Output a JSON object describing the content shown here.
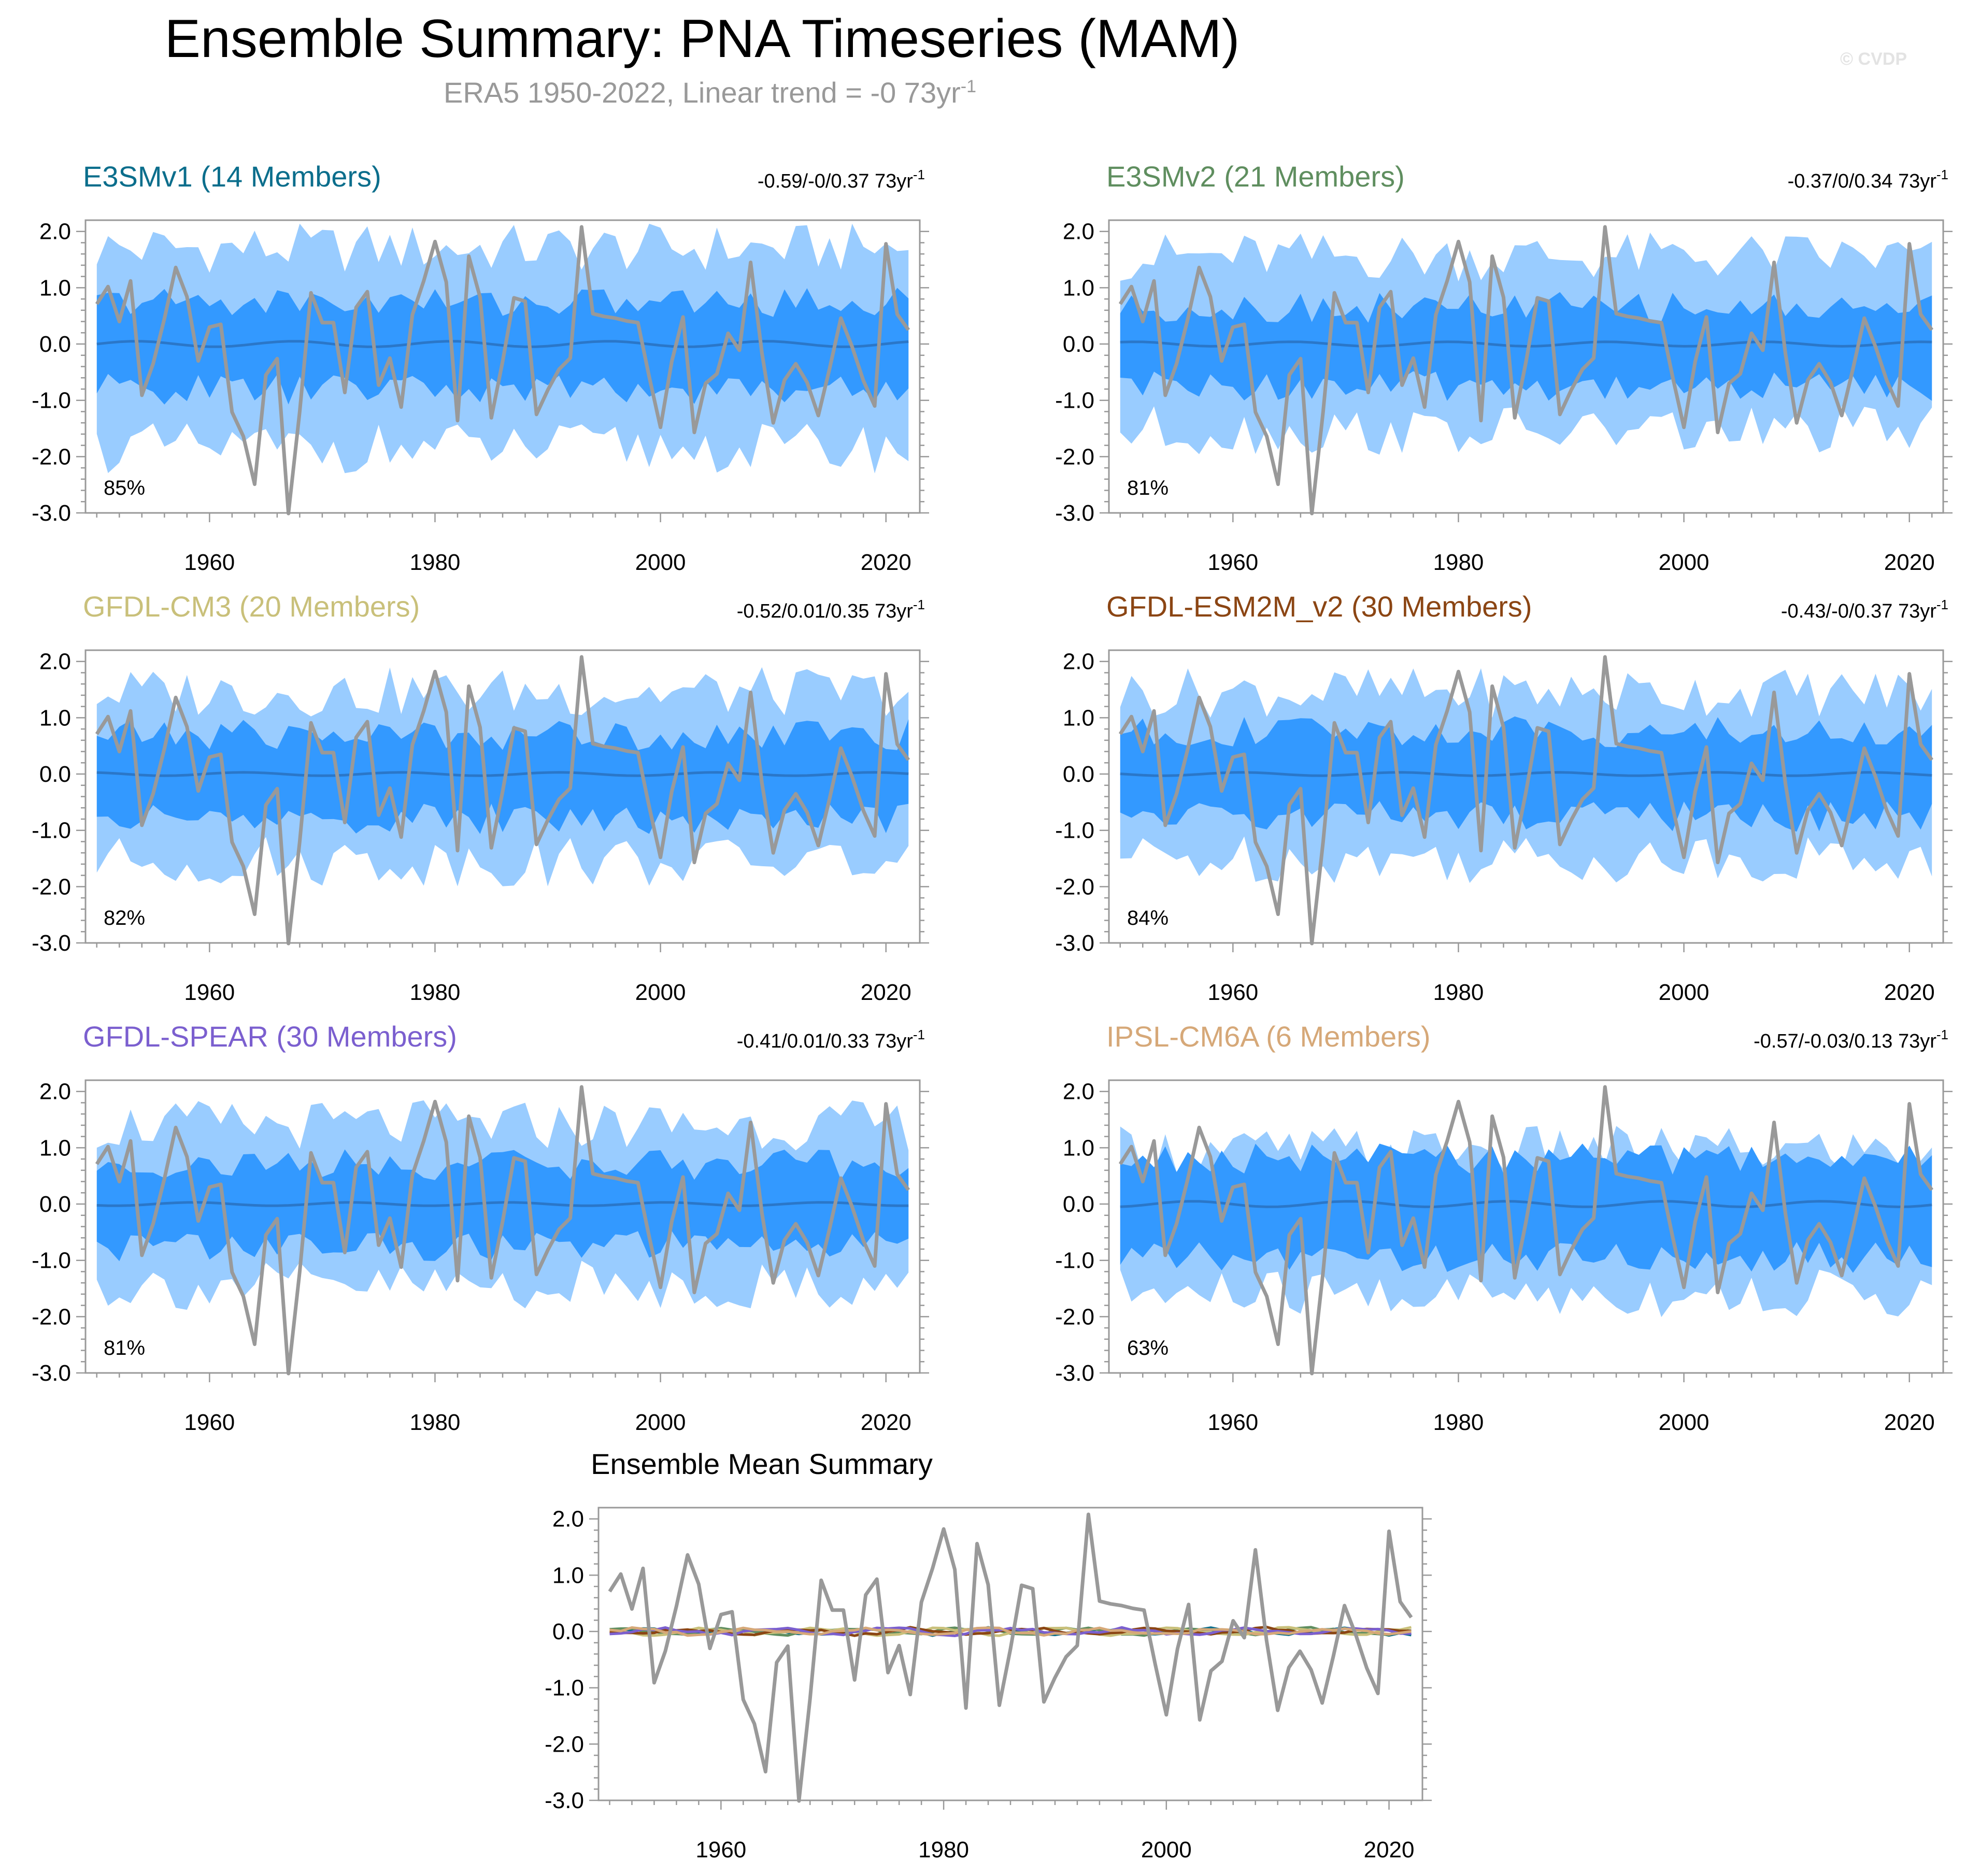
{
  "title": "Ensemble Summary: PNA Timeseries (MAM)",
  "subtitle_main": "ERA5 1950-2022, Linear trend = -0 73yr",
  "subtitle_sup": "-1",
  "watermark": "© CVDP",
  "colors": {
    "outer_band": "#99ccff",
    "inner_band": "#3399ff",
    "ens_mean": "#2a77c9",
    "observed": "#999999",
    "axis": "#999999"
  },
  "x_ticks": [
    "1960",
    "1980",
    "2000",
    "2020"
  ],
  "y_ticks": [
    "2.0",
    "1.0",
    "0.0",
    "-1.0",
    "-2.0",
    "-3.0"
  ],
  "chart_data": {
    "type": "line",
    "years": [
      1950,
      2022
    ],
    "xlim": [
      1949,
      2023
    ],
    "ylim": [
      -3.0,
      2.2
    ],
    "observed_name": "ERA5",
    "observed": [
      0.71,
      1.02,
      0.4,
      1.12,
      -0.91,
      -0.35,
      0.45,
      1.36,
      0.84,
      -0.3,
      0.3,
      0.35,
      -1.21,
      -1.64,
      -2.49,
      -0.55,
      -0.26,
      -3.01,
      -1.2,
      0.91,
      0.38,
      0.38,
      -0.86,
      0.65,
      0.93,
      -0.73,
      -0.25,
      -1.12,
      0.52,
      1.12,
      1.82,
      1.1,
      -1.36,
      1.56,
      0.83,
      -1.31,
      -0.31,
      0.82,
      0.76,
      -1.25,
      -0.82,
      -0.45,
      -0.25,
      2.08,
      0.54,
      0.49,
      0.46,
      0.41,
      0.38,
      -0.58,
      -1.48,
      -0.31,
      0.48,
      -1.57,
      -0.7,
      -0.53,
      0.19,
      -0.11,
      1.45,
      -0.16,
      -1.4,
      -0.64,
      -0.35,
      -0.68,
      -1.27,
      -0.44,
      0.46,
      -0.05,
      -0.65,
      -1.1,
      1.78,
      0.53,
      0.25
    ],
    "panels": [
      {
        "model": "E3SMv1",
        "members": "(14 Members)",
        "stats": "-0.59/-0/0.37 73yr",
        "stats_sup": "-1",
        "pct": "85%",
        "title_color": "#0b6e8c",
        "outer": [
          1.7,
          -1.85
        ],
        "inner": [
          0.75,
          -0.8
        ],
        "mean_amp": 0.05
      },
      {
        "model": "E3SMv2",
        "members": "(21 Members)",
        "stats": "-0.37/0/0.34 73yr",
        "stats_sup": "-1",
        "pct": "81%",
        "title_color": "#5f8e5f",
        "outer": [
          1.55,
          -1.55
        ],
        "inner": [
          0.65,
          -0.75
        ],
        "mean_amp": 0.04
      },
      {
        "model": "GFDL-CM3",
        "members": "(20 Members)",
        "stats": "-0.52/0.01/0.35 73yr",
        "stats_sup": "-1",
        "pct": "82%",
        "title_color": "#c9c07a",
        "outer": [
          1.45,
          -1.55
        ],
        "inner": [
          0.7,
          -0.8
        ],
        "mean_amp": 0.03
      },
      {
        "model": "GFDL-ESM2M_v2",
        "members": "(30 Members)",
        "stats": "-0.43/-0/0.37 73yr",
        "stats_sup": "-1",
        "pct": "84%",
        "title_color": "#8b4513",
        "outer": [
          1.45,
          -1.5
        ],
        "inner": [
          0.75,
          -0.75
        ],
        "mean_amp": 0.03
      },
      {
        "model": "GFDL-SPEAR",
        "members": "(30 Members)",
        "stats": "-0.41/0.01/0.33 73yr",
        "stats_sup": "-1",
        "pct": "81%",
        "title_color": "#7b5fcf",
        "outer": [
          1.4,
          -1.45
        ],
        "inner": [
          0.7,
          -0.75
        ],
        "mean_amp": 0.03
      },
      {
        "model": "IPSL-CM6A",
        "members": "(6 Members)",
        "stats": "-0.57/-0.03/0.13 73yr",
        "stats_sup": "-1",
        "pct": "63%",
        "title_color": "#d6a878",
        "outer": [
          0.95,
          -1.6
        ],
        "inner": [
          0.8,
          -0.95
        ],
        "mean_amp": 0.05
      }
    ],
    "ensemble_mean_title": "Ensemble Mean Summary",
    "ensemble_mean_colors": [
      "#0b6e8c",
      "#5f8e5f",
      "#c9c07a",
      "#8b4513",
      "#7b5fcf",
      "#d6a878"
    ]
  }
}
